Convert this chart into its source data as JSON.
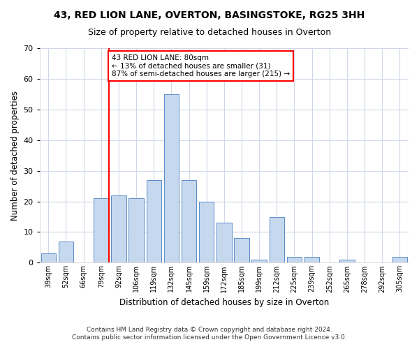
{
  "title_line1": "43, RED LION LANE, OVERTON, BASINGSTOKE, RG25 3HH",
  "title_line2": "Size of property relative to detached houses in Overton",
  "xlabel": "Distribution of detached houses by size in Overton",
  "ylabel": "Number of detached properties",
  "categories": [
    "39sqm",
    "52sqm",
    "66sqm",
    "79sqm",
    "92sqm",
    "106sqm",
    "119sqm",
    "132sqm",
    "145sqm",
    "159sqm",
    "172sqm",
    "185sqm",
    "199sqm",
    "212sqm",
    "225sqm",
    "239sqm",
    "252sqm",
    "265sqm",
    "278sqm",
    "292sqm",
    "305sqm"
  ],
  "values": [
    3,
    7,
    0,
    21,
    22,
    21,
    27,
    55,
    27,
    20,
    13,
    8,
    1,
    15,
    2,
    2,
    0,
    1,
    0,
    0,
    2
  ],
  "bar_color": "#c5d8ee",
  "bar_edge_color": "#5b8dc8",
  "ylim": [
    0,
    70
  ],
  "yticks": [
    0,
    10,
    20,
    30,
    40,
    50,
    60,
    70
  ],
  "red_line_index": 3,
  "annotation_text": "43 RED LION LANE: 80sqm\n← 13% of detached houses are smaller (31)\n87% of semi-detached houses are larger (215) →",
  "footnote1": "Contains HM Land Registry data © Crown copyright and database right 2024.",
  "footnote2": "Contains public sector information licensed under the Open Government Licence v3.0.",
  "background_color": "#ffffff",
  "grid_color": "#d0d8e8",
  "title_fontsize": 10,
  "subtitle_fontsize": 9,
  "axis_label_fontsize": 8.5,
  "tick_fontsize": 7,
  "annotation_fontsize": 7.5,
  "footnote_fontsize": 6.5
}
